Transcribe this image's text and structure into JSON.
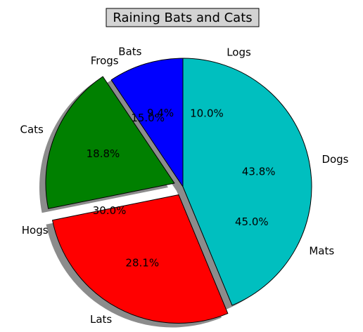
{
  "chart_data": [
    {
      "type": "pie",
      "title": "Raining Bats and Cats",
      "start_angle_deg": 90,
      "direction": "counterclockwise",
      "categories": [
        "Bats",
        "Cats",
        "Lats",
        "Dogs"
      ],
      "values": [
        9.4,
        18.8,
        28.1,
        43.8
      ],
      "percent_labels": [
        "9.4%",
        "18.8%",
        "28.1%",
        "43.8%"
      ],
      "colors": [
        "#0000ff",
        "#008000",
        "#ff0000",
        "#00bfbf"
      ],
      "exploded": [
        "Cats",
        "Lats"
      ],
      "shadow": true
    },
    {
      "type": "pie",
      "start_angle_deg": 90,
      "direction": "counterclockwise",
      "categories": [
        "Frogs",
        "Hogs",
        "Mats",
        "Logs"
      ],
      "values": [
        15.0,
        30.0,
        45.0,
        10.0
      ],
      "percent_labels": [
        "15.0%",
        "30.0%",
        "45.0%",
        "10.0%"
      ],
      "labels_only": true
    }
  ]
}
